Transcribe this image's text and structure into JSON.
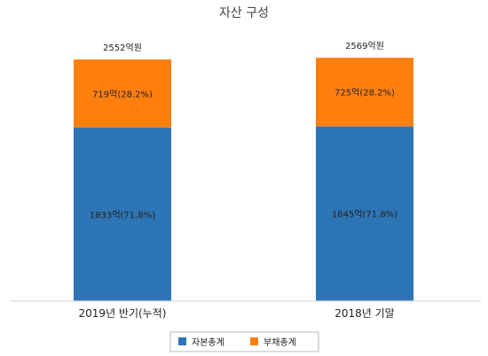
{
  "chart_data": {
    "type": "bar",
    "stacked": true,
    "title": "자산 구성",
    "categories": [
      "2019년 반기(누적)",
      "2018년 기말"
    ],
    "series": [
      {
        "name": "자본총계",
        "color": "#2E75B6",
        "values": [
          1833,
          1845
        ],
        "labels": [
          "1833억(71.8%)",
          "1845억(71.8%)"
        ]
      },
      {
        "name": "부채총계",
        "color": "#FF7F0E",
        "values": [
          719,
          725
        ],
        "labels": [
          "719억(28.2%)",
          "725억(28.2%)"
        ]
      }
    ],
    "totals": [
      "2552억원",
      "2569억원"
    ],
    "legend_position": "bottom",
    "grid": false
  }
}
